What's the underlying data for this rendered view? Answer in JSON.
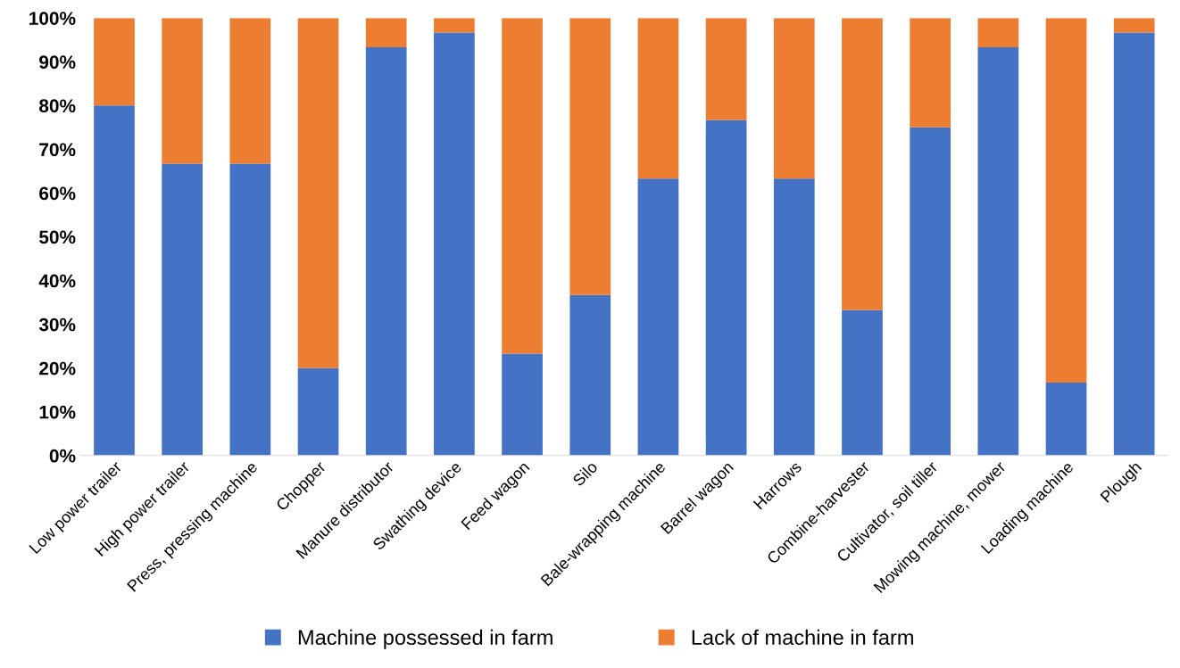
{
  "chart_data": {
    "type": "bar",
    "stacked": true,
    "categories": [
      "Low power trailer",
      "High power trailer",
      "Press, pressing machine",
      "Chopper",
      "Manure distributor",
      "Swathing device",
      "Feed wagon",
      "Silo",
      "Bale-wrapping machine",
      "Barrel wagon",
      "Harrows",
      "Combine-harvester",
      "Cultivator, soil tiller",
      "Mowing machine, mower",
      "Loading machine",
      "Plough"
    ],
    "series": [
      {
        "name": "Machine possessed in farm",
        "color": "#4472c4",
        "values": [
          80,
          66.7,
          66.7,
          20,
          93.3,
          96.7,
          23.3,
          36.7,
          63.3,
          76.7,
          63.3,
          33.3,
          75,
          93.3,
          16.7,
          96.7
        ]
      },
      {
        "name": "Lack of machine in farm",
        "color": "#ed7d31",
        "values": [
          20,
          33.3,
          33.3,
          80,
          6.7,
          3.3,
          76.7,
          63.3,
          36.7,
          23.3,
          36.7,
          66.7,
          25,
          6.7,
          83.3,
          3.3
        ]
      }
    ],
    "ylim": [
      0,
      100
    ],
    "yticks": [
      {
        "value": 0,
        "label": "0%"
      },
      {
        "value": 10,
        "label": "10%"
      },
      {
        "value": 20,
        "label": "20%"
      },
      {
        "value": 30,
        "label": "30%"
      },
      {
        "value": 40,
        "label": "40%"
      },
      {
        "value": 50,
        "label": "50%"
      },
      {
        "value": 60,
        "label": "60%"
      },
      {
        "value": 70,
        "label": "70%"
      },
      {
        "value": 80,
        "label": "80%"
      },
      {
        "value": 90,
        "label": "90%"
      },
      {
        "value": 100,
        "label": "100%"
      }
    ],
    "grid": false,
    "legend": "bottom"
  }
}
